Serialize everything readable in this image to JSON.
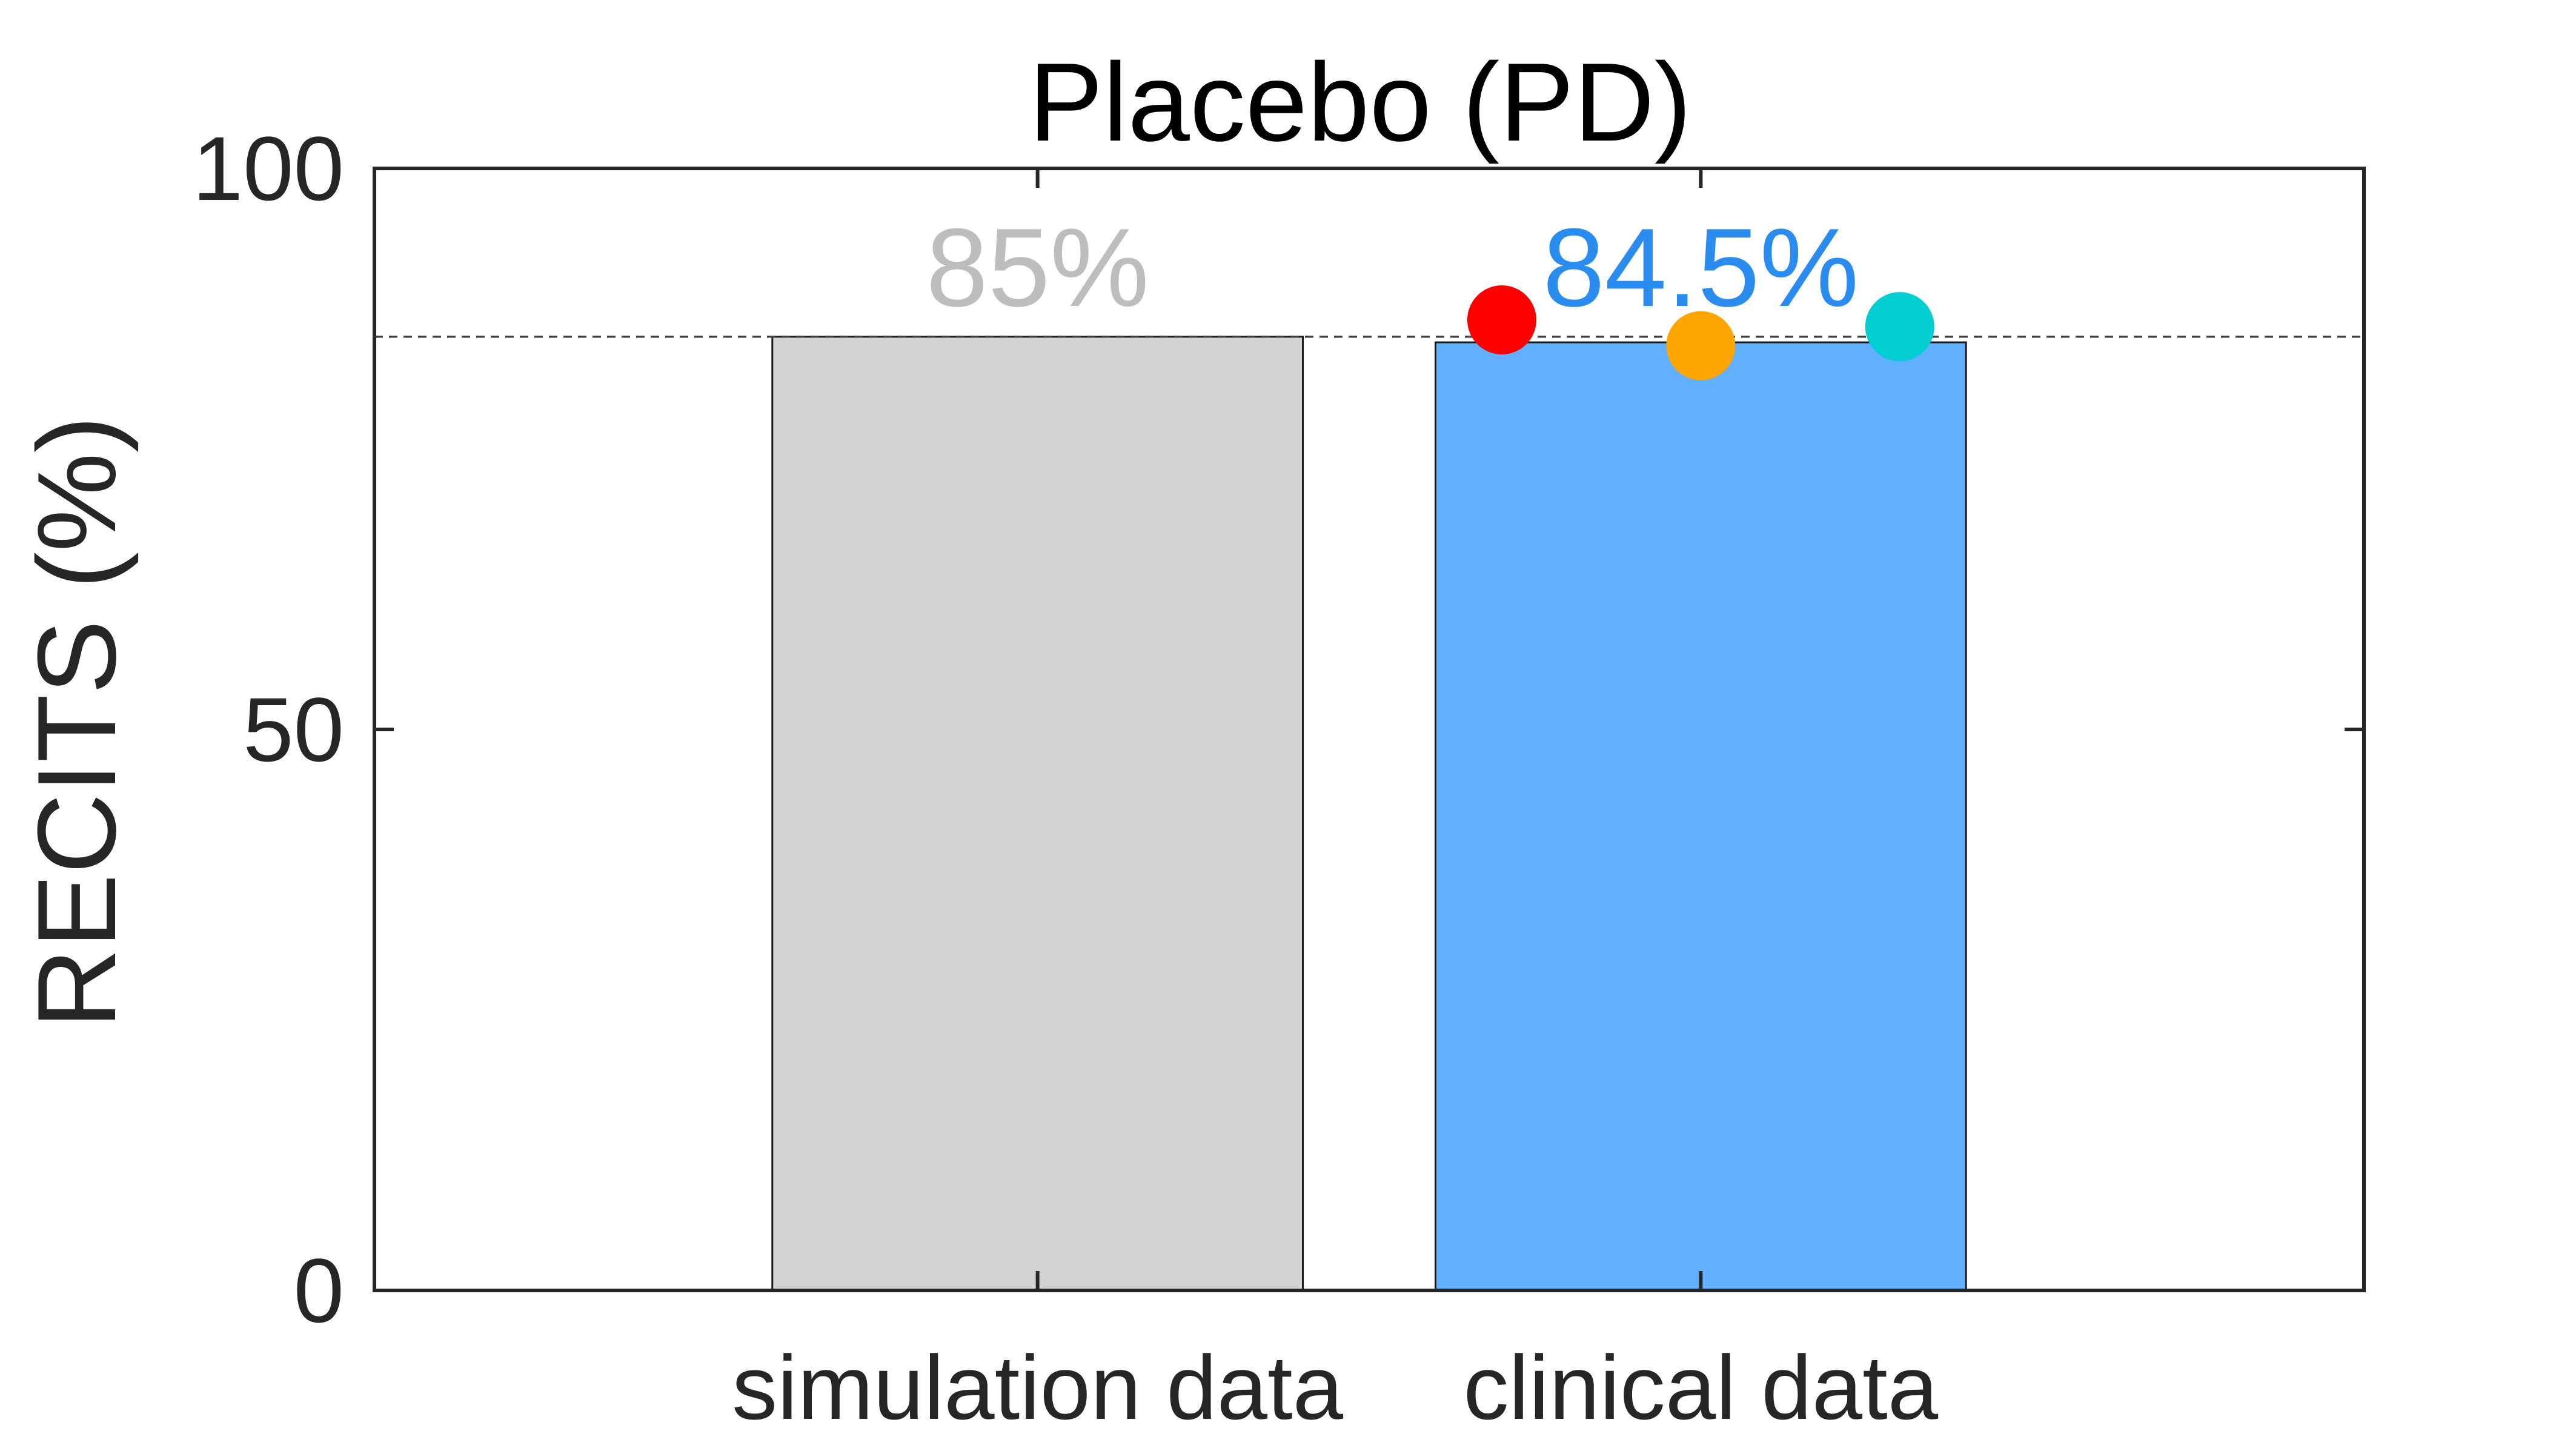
{
  "chart_data": {
    "type": "bar",
    "title": "Placebo (PD)",
    "xlabel": "",
    "ylabel": "RECITS (%)",
    "categories": [
      "simulation data",
      "clinical data"
    ],
    "values": [
      85,
      84.5
    ],
    "bar_labels": [
      "85%",
      "84.5%"
    ],
    "bar_colors": [
      "#d3d3d3",
      "#61afff"
    ],
    "label_colors": [
      "#bdbdbd",
      "#2b8cf0"
    ],
    "ylim": [
      0,
      100
    ],
    "yticks": [
      0,
      50,
      100
    ],
    "ytick_labels": [
      "0",
      "50",
      "100"
    ],
    "reference_line": {
      "value": 85,
      "style": "dashed"
    },
    "points": [
      {
        "category": "clinical data",
        "offset": -0.3,
        "value": 86.5,
        "color": "#ff0000"
      },
      {
        "category": "clinical data",
        "offset": 0.0,
        "value": 84.2,
        "color": "#ffa500"
      },
      {
        "category": "clinical data",
        "offset": 0.3,
        "value": 85.9,
        "color": "#00ced1"
      }
    ],
    "grid": false,
    "legend": "none"
  }
}
